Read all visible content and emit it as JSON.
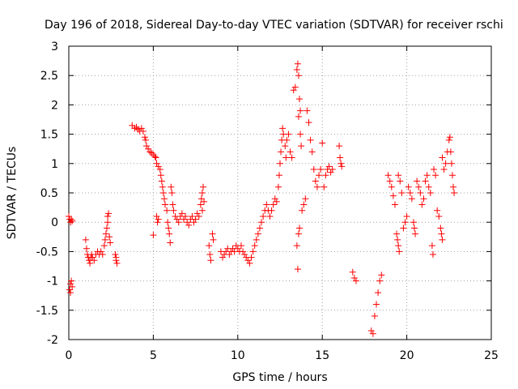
{
  "chart_data": {
    "type": "scatter",
    "title": "Day 196 of 2018, Sidereal Day-to-day VTEC variation (SDTVAR) for receiver rschi",
    "xlabel": "GPS time / hours",
    "ylabel": "SDTVAR / TECUs",
    "xlim": [
      0,
      25
    ],
    "ylim": [
      -2,
      3
    ],
    "xticks": [
      0,
      5,
      10,
      15,
      20,
      25
    ],
    "yticks": [
      -2,
      -1.5,
      -1,
      -0.5,
      0,
      0.5,
      1,
      1.5,
      2,
      2.5,
      3
    ],
    "grid": true,
    "marker": "+",
    "color": "#ff0000",
    "series": [
      {
        "name": "SDTVAR",
        "points": [
          [
            0.0,
            0.1
          ],
          [
            0.05,
            0.05
          ],
          [
            0.1,
            0.0
          ],
          [
            0.15,
            0.05
          ],
          [
            0.2,
            0.02
          ],
          [
            0.05,
            -1.15
          ],
          [
            0.1,
            -1.05
          ],
          [
            0.15,
            -1.0
          ],
          [
            0.2,
            -1.1
          ],
          [
            0.1,
            -1.2
          ],
          [
            1.0,
            -0.3
          ],
          [
            1.05,
            -0.45
          ],
          [
            1.1,
            -0.55
          ],
          [
            1.15,
            -0.6
          ],
          [
            1.2,
            -0.65
          ],
          [
            1.25,
            -0.7
          ],
          [
            1.3,
            -0.6
          ],
          [
            1.35,
            -0.55
          ],
          [
            1.4,
            -0.6
          ],
          [
            1.5,
            -0.65
          ],
          [
            1.6,
            -0.55
          ],
          [
            1.7,
            -0.5
          ],
          [
            1.8,
            -0.55
          ],
          [
            1.9,
            -0.5
          ],
          [
            2.0,
            -0.55
          ],
          [
            2.1,
            -0.4
          ],
          [
            2.15,
            -0.3
          ],
          [
            2.2,
            -0.2
          ],
          [
            2.25,
            -0.1
          ],
          [
            2.3,
            0.0
          ],
          [
            2.35,
            0.15
          ],
          [
            2.3,
            0.1
          ],
          [
            2.4,
            -0.25
          ],
          [
            2.45,
            -0.35
          ],
          [
            2.75,
            -0.55
          ],
          [
            2.8,
            -0.65
          ],
          [
            2.85,
            -0.7
          ],
          [
            2.8,
            -0.6
          ],
          [
            3.75,
            1.65
          ],
          [
            3.9,
            1.6
          ],
          [
            4.0,
            1.62
          ],
          [
            4.1,
            1.58
          ],
          [
            4.2,
            1.55
          ],
          [
            4.3,
            1.6
          ],
          [
            4.4,
            1.55
          ],
          [
            4.5,
            1.45
          ],
          [
            4.55,
            1.4
          ],
          [
            4.6,
            1.3
          ],
          [
            4.7,
            1.25
          ],
          [
            4.8,
            1.2
          ],
          [
            4.9,
            1.18
          ],
          [
            5.0,
            1.15
          ],
          [
            5.1,
            1.12
          ],
          [
            5.15,
            1.1
          ],
          [
            5.2,
            1.0
          ],
          [
            5.3,
            0.95
          ],
          [
            5.4,
            0.9
          ],
          [
            5.45,
            0.8
          ],
          [
            5.5,
            0.7
          ],
          [
            5.55,
            0.6
          ],
          [
            5.6,
            0.5
          ],
          [
            5.65,
            0.4
          ],
          [
            5.7,
            0.3
          ],
          [
            5.2,
            0.1
          ],
          [
            5.25,
            0.0
          ],
          [
            5.3,
            0.05
          ],
          [
            5.0,
            -0.22
          ],
          [
            5.8,
            0.2
          ],
          [
            5.85,
            0.0
          ],
          [
            5.9,
            -0.1
          ],
          [
            5.95,
            -0.2
          ],
          [
            6.0,
            -0.35
          ],
          [
            6.05,
            0.6
          ],
          [
            6.1,
            0.5
          ],
          [
            6.15,
            0.3
          ],
          [
            6.2,
            0.2
          ],
          [
            6.3,
            0.1
          ],
          [
            6.4,
            0.05
          ],
          [
            6.5,
            0.0
          ],
          [
            6.6,
            0.1
          ],
          [
            6.7,
            0.15
          ],
          [
            6.8,
            0.05
          ],
          [
            6.9,
            0.1
          ],
          [
            7.0,
            0.0
          ],
          [
            7.1,
            -0.05
          ],
          [
            7.2,
            0.05
          ],
          [
            7.3,
            0.1
          ],
          [
            7.4,
            0.0
          ],
          [
            7.5,
            0.05
          ],
          [
            7.6,
            0.15
          ],
          [
            7.7,
            0.1
          ],
          [
            7.8,
            0.3
          ],
          [
            7.85,
            0.4
          ],
          [
            7.9,
            0.5
          ],
          [
            7.95,
            0.6
          ],
          [
            8.0,
            0.35
          ],
          [
            7.9,
            0.2
          ],
          [
            8.3,
            -0.4
          ],
          [
            8.35,
            -0.55
          ],
          [
            8.4,
            -0.65
          ],
          [
            8.5,
            -0.2
          ],
          [
            8.55,
            -0.3
          ],
          [
            9.0,
            -0.5
          ],
          [
            9.1,
            -0.6
          ],
          [
            9.2,
            -0.55
          ],
          [
            9.3,
            -0.5
          ],
          [
            9.4,
            -0.45
          ],
          [
            9.5,
            -0.55
          ],
          [
            9.6,
            -0.5
          ],
          [
            9.7,
            -0.45
          ],
          [
            9.8,
            -0.5
          ],
          [
            9.9,
            -0.4
          ],
          [
            10.0,
            -0.45
          ],
          [
            10.1,
            -0.5
          ],
          [
            10.2,
            -0.4
          ],
          [
            10.3,
            -0.5
          ],
          [
            10.4,
            -0.55
          ],
          [
            10.5,
            -0.6
          ],
          [
            10.6,
            -0.65
          ],
          [
            10.7,
            -0.7
          ],
          [
            10.8,
            -0.6
          ],
          [
            10.9,
            -0.5
          ],
          [
            11.0,
            -0.4
          ],
          [
            11.1,
            -0.3
          ],
          [
            11.2,
            -0.2
          ],
          [
            11.3,
            -0.1
          ],
          [
            11.4,
            0.0
          ],
          [
            11.5,
            0.1
          ],
          [
            11.6,
            0.2
          ],
          [
            11.7,
            0.3
          ],
          [
            11.8,
            0.2
          ],
          [
            11.9,
            0.1
          ],
          [
            12.0,
            0.2
          ],
          [
            12.1,
            0.3
          ],
          [
            12.2,
            0.4
          ],
          [
            12.3,
            0.35
          ],
          [
            12.4,
            0.6
          ],
          [
            12.45,
            0.8
          ],
          [
            12.5,
            1.0
          ],
          [
            12.55,
            1.2
          ],
          [
            12.6,
            1.4
          ],
          [
            12.65,
            1.6
          ],
          [
            12.7,
            1.5
          ],
          [
            12.8,
            1.3
          ],
          [
            12.85,
            1.1
          ],
          [
            12.9,
            1.4
          ],
          [
            13.0,
            1.5
          ],
          [
            13.1,
            1.2
          ],
          [
            13.2,
            1.1
          ],
          [
            13.3,
            2.25
          ],
          [
            13.4,
            2.3
          ],
          [
            13.5,
            2.6
          ],
          [
            13.55,
            2.7
          ],
          [
            13.6,
            2.5
          ],
          [
            13.65,
            2.1
          ],
          [
            13.7,
            1.9
          ],
          [
            13.6,
            1.8
          ],
          [
            13.7,
            1.5
          ],
          [
            13.75,
            1.3
          ],
          [
            13.5,
            -0.4
          ],
          [
            13.6,
            -0.2
          ],
          [
            13.65,
            -0.1
          ],
          [
            13.55,
            -0.8
          ],
          [
            13.8,
            0.2
          ],
          [
            13.9,
            0.3
          ],
          [
            14.0,
            0.4
          ],
          [
            14.1,
            1.9
          ],
          [
            14.2,
            1.7
          ],
          [
            14.3,
            1.4
          ],
          [
            14.4,
            1.2
          ],
          [
            14.5,
            0.9
          ],
          [
            14.6,
            0.7
          ],
          [
            14.7,
            0.6
          ],
          [
            14.8,
            0.8
          ],
          [
            14.9,
            0.9
          ],
          [
            15.0,
            1.35
          ],
          [
            15.1,
            0.6
          ],
          [
            15.2,
            0.8
          ],
          [
            15.3,
            0.9
          ],
          [
            15.4,
            0.95
          ],
          [
            15.5,
            0.85
          ],
          [
            15.6,
            0.9
          ],
          [
            16.0,
            1.3
          ],
          [
            16.05,
            1.1
          ],
          [
            16.1,
            1.0
          ],
          [
            16.15,
            0.95
          ],
          [
            16.8,
            -0.85
          ],
          [
            16.9,
            -0.95
          ],
          [
            17.0,
            -1.0
          ],
          [
            17.9,
            -1.85
          ],
          [
            18.0,
            -1.9
          ],
          [
            18.1,
            -1.6
          ],
          [
            18.2,
            -1.4
          ],
          [
            18.3,
            -1.2
          ],
          [
            18.4,
            -1.0
          ],
          [
            18.5,
            -0.9
          ],
          [
            18.9,
            0.8
          ],
          [
            19.0,
            0.7
          ],
          [
            19.1,
            0.6
          ],
          [
            19.2,
            0.45
          ],
          [
            19.3,
            0.3
          ],
          [
            19.5,
            0.8
          ],
          [
            19.6,
            0.7
          ],
          [
            19.7,
            0.5
          ],
          [
            19.4,
            -0.2
          ],
          [
            19.45,
            -0.3
          ],
          [
            19.5,
            -0.4
          ],
          [
            19.55,
            -0.5
          ],
          [
            19.8,
            -0.1
          ],
          [
            19.9,
            0.0
          ],
          [
            20.0,
            0.1
          ],
          [
            20.1,
            0.6
          ],
          [
            20.2,
            0.5
          ],
          [
            20.3,
            0.4
          ],
          [
            20.4,
            0.0
          ],
          [
            20.45,
            -0.1
          ],
          [
            20.5,
            -0.2
          ],
          [
            20.6,
            0.7
          ],
          [
            20.7,
            0.6
          ],
          [
            20.8,
            0.5
          ],
          [
            20.9,
            0.3
          ],
          [
            21.0,
            0.4
          ],
          [
            21.1,
            0.7
          ],
          [
            21.2,
            0.8
          ],
          [
            21.3,
            0.6
          ],
          [
            21.4,
            0.5
          ],
          [
            21.5,
            -0.4
          ],
          [
            21.55,
            -0.55
          ],
          [
            21.6,
            0.9
          ],
          [
            21.7,
            0.8
          ],
          [
            21.8,
            0.2
          ],
          [
            21.9,
            0.1
          ],
          [
            22.0,
            -0.1
          ],
          [
            22.05,
            -0.2
          ],
          [
            22.1,
            -0.3
          ],
          [
            22.1,
            1.1
          ],
          [
            22.2,
            0.9
          ],
          [
            22.3,
            1.0
          ],
          [
            22.4,
            1.2
          ],
          [
            22.5,
            1.4
          ],
          [
            22.55,
            1.45
          ],
          [
            22.6,
            1.2
          ],
          [
            22.65,
            1.0
          ],
          [
            22.7,
            0.8
          ],
          [
            22.75,
            0.6
          ],
          [
            22.8,
            0.5
          ]
        ]
      }
    ]
  }
}
